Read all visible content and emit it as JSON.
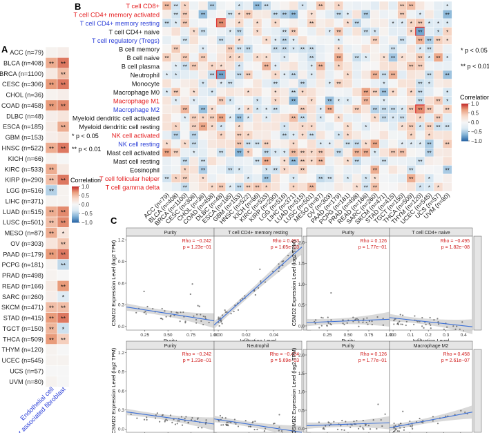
{
  "panels": {
    "A": "A",
    "B": "B",
    "C": "C"
  },
  "colors": {
    "neg_strong": "#2f6aa8",
    "neg_mid": "#7fb0d5",
    "neg_light": "#dbe9f3",
    "neutral": "#f6f6f6",
    "pos_light": "#f7d8c8",
    "pos_mid": "#e99c7b",
    "pos_strong": "#c5302d",
    "red_label": "#e41a1c",
    "blue_label": "#2b3fd8",
    "fit_line": "#3a6fd8",
    "se_band": "#cfcfcf"
  },
  "chart_data": [
    {
      "id": "A",
      "type": "heatmap",
      "rows": [
        "ACC (n=79)",
        "BLCA (n=408)",
        "BRCA (n=1100)",
        "CESC (n=306)",
        "CHOL (n=36)",
        "COAD (n=458)",
        "DLBC (n=48)",
        "ESCA (n=185)",
        "GBM (n=153)",
        "HNSC (n=522)",
        "KICH (n=66)",
        "KIRC (n=533)",
        "KIRP (n=290)",
        "LGG (n=516)",
        "LIHC (n=371)",
        "LUAD (n=515)",
        "LUSC (n=501)",
        "MESO (n=87)",
        "OV (n=303)",
        "PAAD (n=179)",
        "PCPG (n=181)",
        "PRAD (n=498)",
        "READ (n=166)",
        "SARC (n=260)",
        "SKCM (n=471)",
        "STAD (n=415)",
        "TGCT (n=150)",
        "THCA (n=509)",
        "THYM (n=120)",
        "UCEC (n=545)",
        "UCS (n=57)",
        "UVM (n=80)"
      ],
      "columns": [
        "Endothelial cell",
        "Cancer associated fibroblast"
      ],
      "values": [
        [
          0.05,
          0.1
        ],
        [
          0.6,
          0.8
        ],
        [
          0.15,
          0.5
        ],
        [
          0.7,
          0.8
        ],
        [
          0.05,
          0.1
        ],
        [
          0.7,
          0.75
        ],
        [
          0.1,
          0.2
        ],
        [
          0.15,
          0.6
        ],
        [
          0.1,
          0.2
        ],
        [
          0.6,
          0.8
        ],
        [
          0.05,
          0.0
        ],
        [
          0.6,
          0.15
        ],
        [
          0.5,
          0.8
        ],
        [
          -0.5,
          0.05
        ],
        [
          0.05,
          0.05
        ],
        [
          0.6,
          0.75
        ],
        [
          0.5,
          0.75
        ],
        [
          0.6,
          0.2
        ],
        [
          0.2,
          0.45
        ],
        [
          0.7,
          0.8
        ],
        [
          0.05,
          -0.45
        ],
        [
          0.05,
          0.0
        ],
        [
          0.15,
          0.7
        ],
        [
          0.1,
          -0.3
        ],
        [
          0.5,
          0.5
        ],
        [
          0.7,
          0.8
        ],
        [
          0.55,
          -0.4
        ],
        [
          0.7,
          0.4
        ],
        [
          0.05,
          0.0
        ],
        [
          0.05,
          0.05
        ],
        [
          0.0,
          0.0
        ],
        [
          0.05,
          0.0
        ]
      ],
      "stars": [
        [
          "",
          ""
        ],
        [
          "**",
          "**"
        ],
        [
          "",
          "**"
        ],
        [
          "**",
          "**"
        ],
        [
          "",
          ""
        ],
        [
          "**",
          "**"
        ],
        [
          "",
          ""
        ],
        [
          "",
          "**"
        ],
        [
          "",
          ""
        ],
        [
          "**",
          "**"
        ],
        [
          "",
          ""
        ],
        [
          "**",
          ""
        ],
        [
          "**",
          "**"
        ],
        [
          "**",
          ""
        ],
        [
          "",
          ""
        ],
        [
          "**",
          "**"
        ],
        [
          "**",
          "**"
        ],
        [
          "**",
          "*"
        ],
        [
          "",
          "**"
        ],
        [
          "**",
          "**"
        ],
        [
          "",
          "**"
        ],
        [
          "",
          ""
        ],
        [
          "",
          "**"
        ],
        [
          "",
          "*"
        ],
        [
          "**",
          "**"
        ],
        [
          "**",
          "**"
        ],
        [
          "**",
          "*"
        ],
        [
          "**",
          "**"
        ],
        [
          "",
          ""
        ],
        [
          "",
          ""
        ],
        [
          "",
          ""
        ],
        [
          "",
          ""
        ]
      ],
      "legend_notes": [
        "* p < 0.05",
        "** p < 0.01"
      ],
      "colorbar_title": "Correlation",
      "colorbar_ticks": [
        "1.0",
        "0.5",
        "0.0",
        "−0.5",
        "−1.0"
      ],
      "colorbar_range": [
        -1.0,
        1.0
      ]
    },
    {
      "id": "B",
      "type": "heatmap",
      "rows": [
        "T cell CD8+",
        "T cell CD4+ memory activated",
        "T cell CD4+ memory resting",
        "T cell CD4+ naive",
        "T cell regulatory (Tregs)",
        "B cell memory",
        "B cell naive",
        "B cell plasma",
        "Neutrophil",
        "Monocyte",
        "Macrophage M0",
        "Macrophage M1",
        "Macrophage M2",
        "Myeloid dendritic cell activated",
        "Myeloid dendritic cell resting",
        "NK cell activated",
        "NK cell resting",
        "Mast cell activated",
        "Mast cell resting",
        "Eosinophil",
        "T cell follicular helper",
        "T cell gamma delta"
      ],
      "row_colors": [
        "red",
        "red",
        "blue",
        "black",
        "blue",
        "black",
        "black",
        "black",
        "black",
        "black",
        "black",
        "red",
        "blue",
        "black",
        "black",
        "red",
        "blue",
        "black",
        "black",
        "black",
        "red",
        "red"
      ],
      "columns": [
        "ACC (n=79)",
        "BLCA (n=408)",
        "BRCA (n=1100)",
        "CESC (n=306)",
        "CHOL (n=36)",
        "COAD (n=458)",
        "DLBC (n=48)",
        "ESCA (n=185)",
        "GBM (n=153)",
        "HNSC (n=522)",
        "KICH (n=66)",
        "KIRC (n=533)",
        "KIRP (n=290)",
        "LGG (n=516)",
        "LIHC (n=371)",
        "LUAD (n=515)",
        "LUSC (n=501)",
        "MESO (n=87)",
        "OV (n=303)",
        "PAAD (n=179)",
        "PCPG (n=181)",
        "PRAD (n=498)",
        "READ (n=166)",
        "SARC (n=260)",
        "SKCM (n=471)",
        "STAD (n=415)",
        "TGCT (n=150)",
        "THCA (n=509)",
        "THYM (n=120)",
        "UCEC (n=545)",
        "UCS (n=57)",
        "UVM (n=80)"
      ],
      "highlight_cells": [
        {
          "row": "T cell CD4+ memory resting",
          "column": "DLBC (n=48)"
        },
        {
          "row": "Neutrophil",
          "column": "DLBC (n=48)"
        },
        {
          "row": "T cell CD4+ naive",
          "column": "THYM (n=120)"
        },
        {
          "row": "Macrophage M2",
          "column": "THYM (n=120)"
        }
      ],
      "legend_notes": [
        "* p < 0.05",
        "** p < 0.01"
      ],
      "colorbar_title": "Correlation",
      "colorbar_ticks": [
        "1.0",
        "0.5",
        "0.0",
        "−0.5",
        "−1.0"
      ],
      "colorbar_range": [
        -1.0,
        1.0
      ]
    },
    {
      "id": "C",
      "type": "scatter",
      "ylabel": "CSMD2 Expression Level (log2 TPM)",
      "plots": [
        {
          "row_label": "DLBC",
          "facets": [
            {
              "title": "Purity",
              "xlabel": "Purity",
              "rho": "Rho = −0.242",
              "p": "p = 1.23e−01",
              "xlim": [
                0.05,
                1.0
              ],
              "xticks": [
                "0.25",
                "0.50",
                "0.75",
                "1.00"
              ],
              "fit": [
                [
                  0.05,
                  0.27
                ],
                [
                  1.0,
                  0.08
                ]
              ]
            },
            {
              "title": "T cell CD4+ memory resting",
              "xlabel": "Infiltration Level",
              "rho": "Rho = 0.493",
              "p": "p = 1.05e−03",
              "xlim": [
                -0.003,
                0.06
              ],
              "xticks": [
                "0.00",
                "0.02",
                "0.04"
              ],
              "fit": [
                [
                  -0.003,
                  0.02
                ],
                [
                  0.06,
                  1.1
                ]
              ]
            }
          ],
          "ylim": [
            -0.05,
            1.25
          ],
          "yticks": [
            "0.0",
            "0.3",
            "0.6",
            "0.9",
            "1.2"
          ]
        },
        {
          "row_label": "THYM",
          "facets": [
            {
              "title": "Purity",
              "xlabel": "Purity",
              "rho": "Rho = 0.126",
              "p": "p = 1.77e−01",
              "xlim": [
                0.0,
                1.0
              ],
              "xticks": [
                "0.25",
                "0.50",
                "0.75",
                "1.00"
              ],
              "fit": [
                [
                  0.0,
                  0.08
                ],
                [
                  1.0,
                  0.16
                ]
              ]
            },
            {
              "title": "T cell CD4+ naive",
              "xlabel": "Infiltration Level",
              "rho": "Rho = −0.495",
              "p": "p = 1.82e−08",
              "xlim": [
                -0.02,
                0.45
              ],
              "xticks": [
                "0.0",
                "0.1",
                "0.2",
                "0.3",
                "0.4"
              ],
              "fit": [
                [
                  -0.02,
                  0.2
                ],
                [
                  0.45,
                  -0.02
                ]
              ]
            }
          ],
          "ylim": [
            -0.1,
            2.15
          ],
          "yticks": [
            "0.0",
            "0.5",
            "1.0",
            "1.5",
            "2.0"
          ]
        },
        {
          "row_label": "DLBC",
          "facets": [
            {
              "title": "Purity",
              "xlabel": "Purity",
              "rho": "Rho = −0.242",
              "p": "p = 1.23e−01",
              "xlim": [
                0.05,
                1.0
              ],
              "xticks": [
                "0.25",
                "0.50",
                "0.75",
                "1.00"
              ],
              "fit": [
                [
                  0.05,
                  0.27
                ],
                [
                  1.0,
                  0.08
                ]
              ]
            },
            {
              "title": "Neutrophil",
              "xlabel": "Infiltration Level",
              "rho": "Rho = −0.424",
              "p": "p = 5.69e−03",
              "xlim": [
                -0.003,
                0.13
              ],
              "xticks": [
                "0.00",
                "0.05",
                "0.10"
              ],
              "fit": [
                [
                  -0.003,
                  0.16
                ],
                [
                  0.13,
                  -0.05
                ]
              ]
            }
          ],
          "ylim": [
            -0.05,
            1.25
          ],
          "yticks": [
            "0.0",
            "0.3",
            "0.6",
            "0.9",
            "1.2"
          ]
        },
        {
          "row_label": "THYM",
          "facets": [
            {
              "title": "Purity",
              "xlabel": "Purity",
              "rho": "Rho = 0.126",
              "p": "p = 1.77e−01",
              "xlim": [
                0.0,
                1.0
              ],
              "xticks": [
                "0.25",
                "0.50",
                "0.75",
                "1.00"
              ],
              "fit": [
                [
                  0.0,
                  0.08
                ],
                [
                  1.0,
                  0.16
                ]
              ]
            },
            {
              "title": "Macrophage M2",
              "xlabel": "Infiltration Level",
              "rho": "Rho = 0.458",
              "p": "p = 2.61e−07",
              "xlim": [
                -0.02,
                0.47
              ],
              "xticks": [
                "0.0",
                "0.1",
                "0.2",
                "0.3",
                "0.4"
              ],
              "fit": [
                [
                  -0.02,
                  0.02
                ],
                [
                  0.47,
                  0.45
                ]
              ]
            }
          ],
          "ylim": [
            -0.1,
            2.15
          ],
          "yticks": [
            "0.0",
            "0.5",
            "1.0",
            "1.5",
            "2.0"
          ]
        }
      ]
    }
  ]
}
